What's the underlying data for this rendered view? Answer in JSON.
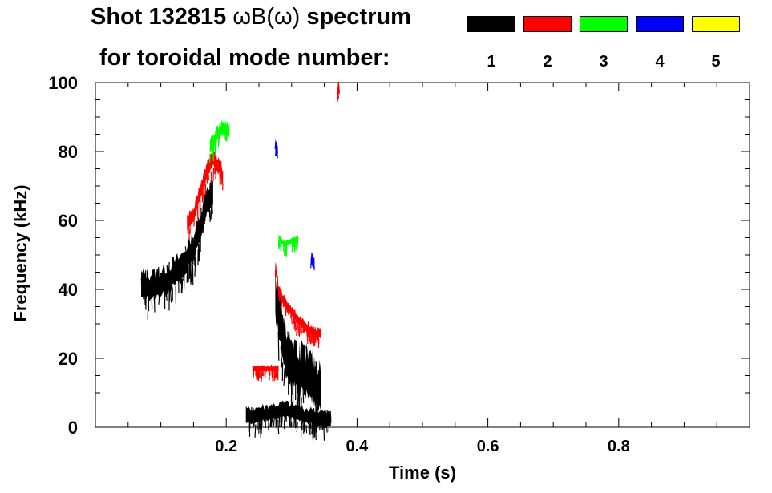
{
  "title_line1_prefix": "Shot 132815 ",
  "title_line1_expr": "ωB(ω)",
  "title_line1_suffix": " spectrum",
  "title_line2": "for toroidal mode number:",
  "legend": [
    {
      "label": "1",
      "color": "#000000"
    },
    {
      "label": "2",
      "color": "#ff0000"
    },
    {
      "label": "3",
      "color": "#00ff00"
    },
    {
      "label": "4",
      "color": "#0000ff"
    },
    {
      "label": "5",
      "color": "#ffff00"
    }
  ],
  "chart_data": {
    "type": "heatmap",
    "title": "Shot 132815 ωB(ω) spectrum for toroidal mode number",
    "xlabel": "Time (s)",
    "ylabel": "Frequency (kHz)",
    "xlim": [
      0.0,
      1.0
    ],
    "ylim": [
      0,
      100
    ],
    "x_ticks": [
      0.2,
      0.4,
      0.6,
      0.8
    ],
    "x_tick_labels": [
      "0.2",
      "0.4",
      "0.6",
      "0.8"
    ],
    "y_ticks": [
      0,
      20,
      40,
      60,
      80,
      100
    ],
    "y_tick_labels": [
      "0",
      "20",
      "40",
      "60",
      "80",
      "100"
    ],
    "series": [
      {
        "name": "n=1",
        "color": "#000000",
        "bands": [
          {
            "points": [
              [
                0.07,
                41
              ],
              [
                0.09,
                41
              ],
              [
                0.11,
                43
              ],
              [
                0.13,
                46
              ],
              [
                0.15,
                52
              ],
              [
                0.16,
                58
              ],
              [
                0.17,
                66
              ],
              [
                0.18,
                68
              ]
            ],
            "width_khz": 7
          },
          {
            "points": [
              [
                0.275,
                38
              ],
              [
                0.29,
                22
              ],
              [
                0.31,
                17
              ],
              [
                0.33,
                14
              ],
              [
                0.345,
                11
              ]
            ],
            "width_khz": 12
          },
          {
            "points": [
              [
                0.23,
                3
              ],
              [
                0.26,
                4
              ],
              [
                0.29,
                5
              ],
              [
                0.33,
                3
              ],
              [
                0.36,
                2
              ]
            ],
            "width_khz": 4
          }
        ]
      },
      {
        "name": "n=2",
        "color": "#ff0000",
        "bands": [
          {
            "points": [
              [
                0.14,
                59
              ],
              [
                0.15,
                62
              ],
              [
                0.16,
                68
              ],
              [
                0.17,
                74
              ],
              [
                0.18,
                78
              ],
              [
                0.19,
                76
              ],
              [
                0.195,
                72
              ]
            ],
            "width_khz": 4
          },
          {
            "points": [
              [
                0.275,
                47
              ],
              [
                0.28,
                40
              ],
              [
                0.29,
                36
              ],
              [
                0.31,
                31
              ],
              [
                0.33,
                28
              ],
              [
                0.345,
                27
              ]
            ],
            "width_khz": 2.5
          },
          {
            "points": [
              [
                0.24,
                17
              ],
              [
                0.26,
                17
              ],
              [
                0.28,
                17
              ]
            ],
            "width_khz": 1.5
          },
          {
            "points": [
              [
                0.37,
                97
              ],
              [
                0.372,
                100
              ]
            ],
            "width_khz": 1.5
          }
        ]
      },
      {
        "name": "n=3",
        "color": "#00ff00",
        "bands": [
          {
            "points": [
              [
                0.175,
                81
              ],
              [
                0.185,
                85
              ],
              [
                0.195,
                87
              ],
              [
                0.205,
                86
              ]
            ],
            "width_khz": 3.5
          },
          {
            "points": [
              [
                0.28,
                55
              ],
              [
                0.29,
                53
              ],
              [
                0.31,
                55
              ]
            ],
            "width_khz": 1.5
          }
        ]
      },
      {
        "name": "n=4",
        "color": "#0000ff",
        "bands": [
          {
            "points": [
              [
                0.275,
                83
              ],
              [
                0.278,
                81
              ]
            ],
            "width_khz": 1.5
          },
          {
            "points": [
              [
                0.33,
                50
              ],
              [
                0.335,
                48
              ]
            ],
            "width_khz": 1.5
          }
        ]
      },
      {
        "name": "n=5",
        "color": "#ffff00",
        "bands": []
      }
    ]
  }
}
